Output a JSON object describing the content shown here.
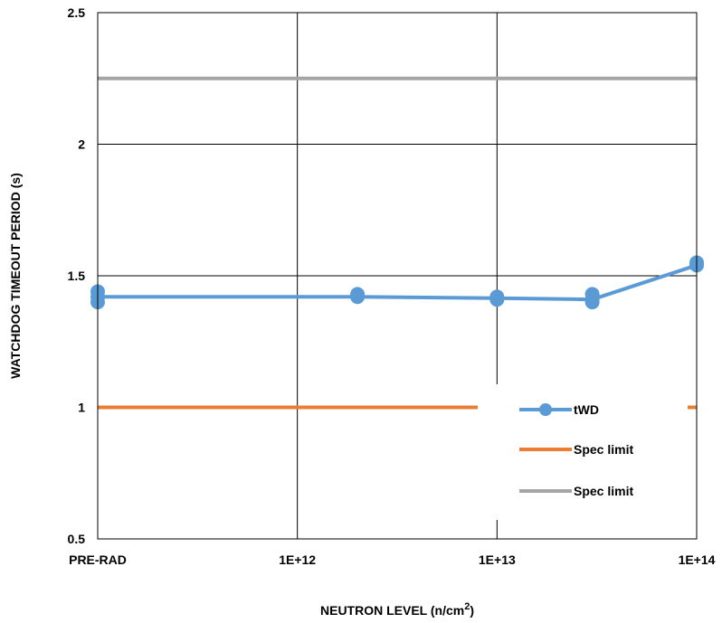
{
  "chart_data": {
    "type": "line",
    "xlabel": "NEUTRON LEVEL (n/cm",
    "xlabel_sup": "2",
    "xlabel_end": ")",
    "ylabel": "WATCHDOG TIMEOUT PERIOD (s)",
    "x_tick_labels": [
      "PRE-RAD",
      "1E+12",
      "1E+13",
      "1E+14"
    ],
    "y_tick_labels": [
      "0.5",
      "1",
      "1.5",
      "2",
      "2.5"
    ],
    "ylim": [
      0.5,
      2.5
    ],
    "x_scale": "log",
    "x_axis_note": "PRE-RAD placed at 1E+11 position on log axis",
    "xlim": [
      "1E+11",
      "1E+14"
    ],
    "grid": true,
    "legend_position": "right",
    "series": [
      {
        "name": "tWD",
        "color": "#5b9bd5",
        "marker": "circle",
        "points": [
          {
            "x": "PRE-RAD",
            "y": [
              1.44,
              1.42,
              1.4
            ]
          },
          {
            "x": "2E+12",
            "y": [
              1.43,
              1.42
            ]
          },
          {
            "x": "1E+13",
            "y": [
              1.42,
              1.41
            ]
          },
          {
            "x": "3E+13",
            "y": [
              1.43,
              1.41,
              1.4
            ]
          },
          {
            "x": "1E+14",
            "y": [
              1.55,
              1.54
            ]
          }
        ],
        "line": [
          {
            "x": "PRE-RAD",
            "y": 1.42
          },
          {
            "x": "2E+12",
            "y": 1.42
          },
          {
            "x": "1E+13",
            "y": 1.415
          },
          {
            "x": "3E+13",
            "y": 1.41
          },
          {
            "x": "1E+14",
            "y": 1.54
          }
        ]
      },
      {
        "name": "Spec limit",
        "color": "#ed7d31",
        "value": 1.0
      },
      {
        "name": "Spec limit",
        "color": "#a5a5a5",
        "value": 2.25
      }
    ]
  }
}
